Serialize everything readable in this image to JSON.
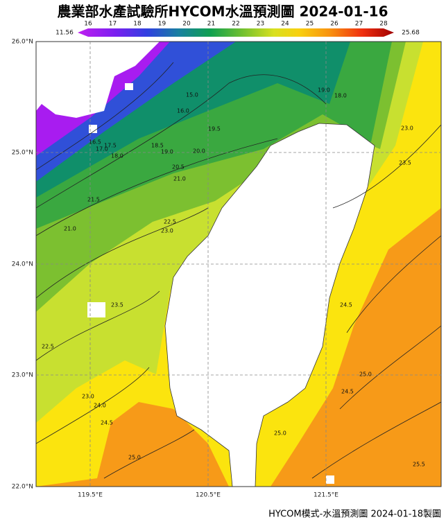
{
  "header": {
    "title": "農業部水產試驗所HYCOM水溫預測圖 2024-01-16"
  },
  "colorbar": {
    "min_label": "11.56",
    "max_label": "25.68",
    "ticks": [
      16,
      17,
      18,
      19,
      20,
      21,
      22,
      23,
      24,
      25,
      26,
      27,
      28
    ]
  },
  "axes": {
    "lat_labels": [
      "26.0°N",
      "25.0°N",
      "24.0°N",
      "23.0°N",
      "22.0°N"
    ],
    "lon_labels": [
      "119.5°E",
      "120.5°E",
      "121.5°E"
    ]
  },
  "contour_labels": [
    "15.0",
    "16.0",
    "16.5",
    "17.0",
    "17.5",
    "18.0",
    "18.5",
    "19.0",
    "19.5",
    "20.0",
    "20.5",
    "21.0",
    "21.5",
    "21.0",
    "22.5",
    "23.0",
    "23.5",
    "22.5",
    "23.0",
    "24.0",
    "24.5",
    "25.0",
    "23.0",
    "23.5",
    "24.5",
    "25.0",
    "24.5",
    "25.0",
    "25.5",
    "18.0",
    "19.0"
  ],
  "footer": "HYCOM模式-水溫預測圖 2024-01-18製圖"
}
